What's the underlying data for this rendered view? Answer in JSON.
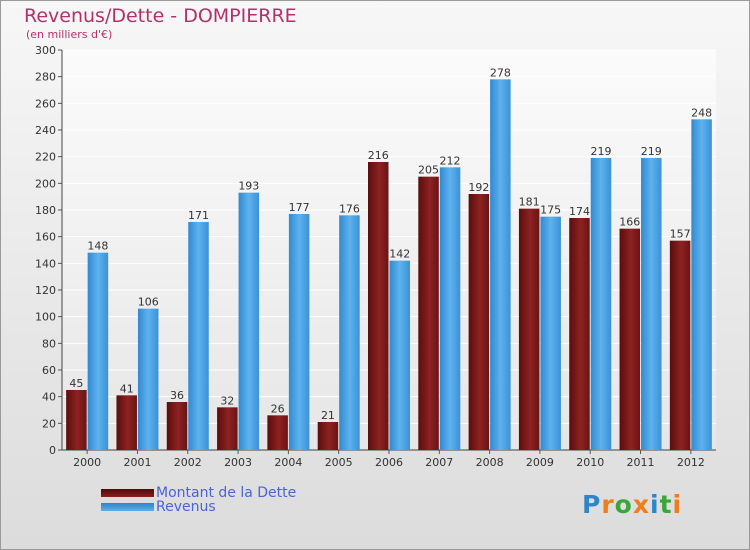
{
  "title": "Revenus/Dette - DOMPIERRE",
  "subtitle": "(en milliers d'€)",
  "colors": {
    "dette": "#7a1616",
    "revenus": "#4aa0e2",
    "title": "#b5306a",
    "legend_text": "#4a63d8"
  },
  "brand": {
    "name": "Proxiti",
    "letters": [
      "P",
      "r",
      "o",
      "x",
      "i",
      "t",
      "i"
    ],
    "letter_colors": [
      "#2e86c8",
      "#ef7d1a",
      "#3aa53a",
      "#ef7d1a",
      "#2e86c8",
      "#3aa53a",
      "#ef7d1a"
    ]
  },
  "chart_data": {
    "type": "bar",
    "categories": [
      "2000",
      "2001",
      "2002",
      "2003",
      "2004",
      "2005",
      "2006",
      "2007",
      "2008",
      "2009",
      "2010",
      "2011",
      "2012"
    ],
    "series": [
      {
        "name": "Montant de la Dette",
        "values": [
          45,
          41,
          36,
          32,
          26,
          21,
          216,
          205,
          192,
          181,
          174,
          166,
          157
        ]
      },
      {
        "name": "Revenus",
        "values": [
          148,
          106,
          171,
          193,
          177,
          176,
          142,
          212,
          278,
          175,
          219,
          219,
          248
        ]
      }
    ],
    "y_ticks": [
      "0",
      "20",
      "40",
      "60",
      "80",
      "100",
      "120",
      "140",
      "160",
      "180",
      "200",
      "220",
      "240",
      "260",
      "280",
      "300"
    ],
    "ylim": [
      0,
      300
    ],
    "grid": true,
    "legend_position": "bottom-left",
    "title": "Revenus/Dette - DOMPIERRE",
    "xlabel": "",
    "ylabel": "(en milliers d'€)"
  }
}
